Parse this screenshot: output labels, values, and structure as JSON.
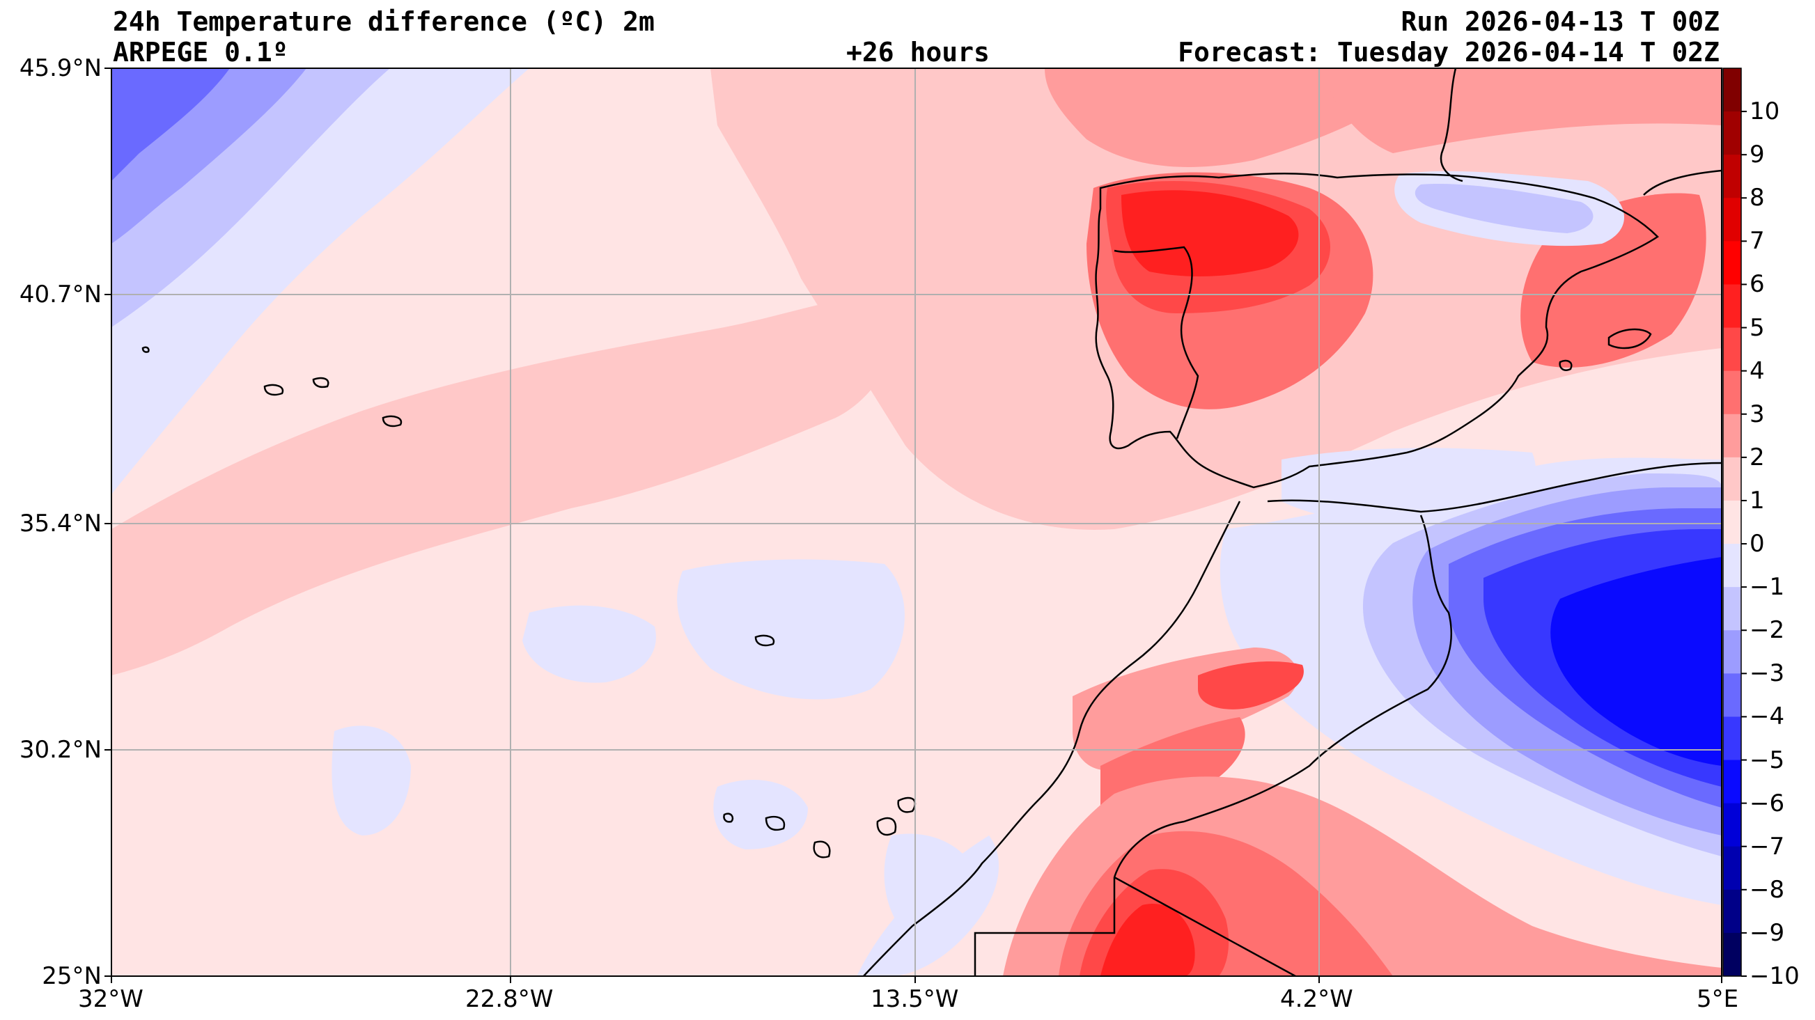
{
  "header": {
    "title": "24h Temperature difference (ºC) 2m",
    "model": "ARPEGE 0.1º",
    "lead_time": "+26 hours",
    "run": "Run 2026-04-13 T 00Z",
    "forecast": "Forecast: Tuesday 2026-04-14 T 02Z"
  },
  "axes": {
    "lat_labels": [
      "45.9°N",
      "40.7°N",
      "35.4°N",
      "30.2°N",
      "25°N"
    ],
    "lon_labels": [
      "32°W",
      "22.8°W",
      "13.5°W",
      "4.2°W",
      "5°E"
    ]
  },
  "colorbar": {
    "tick_labels": [
      "10",
      "9",
      "8",
      "7",
      "6",
      "5",
      "4",
      "3",
      "2",
      "1",
      "0",
      "−1",
      "−2",
      "−3",
      "−4",
      "−5",
      "−6",
      "−7",
      "−8",
      "−9",
      "−10"
    ],
    "levels": [
      10,
      9,
      8,
      7,
      6,
      5,
      4,
      3,
      2,
      1,
      0,
      -1,
      -2,
      -3,
      -4,
      -5,
      -6,
      -7,
      -8,
      -9,
      -10,
      -11
    ],
    "colors": [
      "#800000",
      "#a00000",
      "#c00000",
      "#e00000",
      "#ff0000",
      "#ff2020",
      "#ff4848",
      "#ff7070",
      "#ff9c9c",
      "#ffc8c8",
      "#ffe4e4",
      "#e4e4ff",
      "#c4c4ff",
      "#9c9cff",
      "#6a6aff",
      "#3838ff",
      "#0a0aff",
      "#0000d8",
      "#0000b0",
      "#000088",
      "#000060"
    ]
  },
  "map_colors": {
    "land_line": "#000000",
    "grid": "#b0b0b0",
    "ocean_base": "#ffe4e4"
  }
}
